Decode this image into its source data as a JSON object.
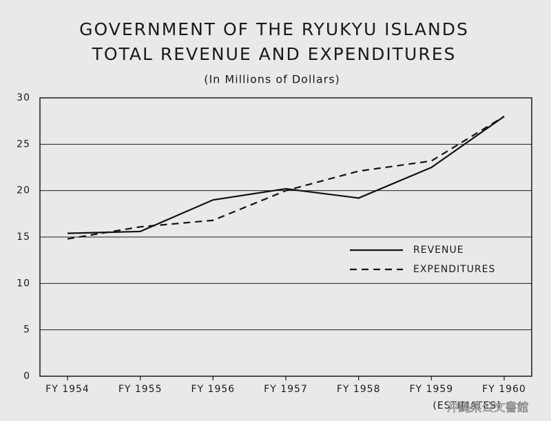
{
  "chart_data": {
    "type": "line",
    "title_lines": [
      "GOVERNMENT OF THE RYUKYU ISLANDS",
      "TOTAL REVENUE AND EXPENDITURES"
    ],
    "subtitle": "(In Millions of Dollars)",
    "categories": [
      "FY 1954",
      "FY 1955",
      "FY 1956",
      "FY 1957",
      "FY 1958",
      "FY 1959",
      "FY 1960"
    ],
    "series": [
      {
        "name": "REVENUE",
        "color": "#111111",
        "line_style": "solid",
        "values": [
          15.4,
          15.6,
          19.0,
          20.2,
          19.2,
          22.5,
          28.0
        ]
      },
      {
        "name": "EXPENDITURES",
        "color": "#111111",
        "line_style": "dashed",
        "values": [
          14.8,
          16.1,
          16.8,
          20.0,
          22.1,
          23.2,
          28.0
        ]
      }
    ],
    "ylim": [
      0,
      30
    ],
    "yticks": [
      0,
      5,
      10,
      15,
      20,
      25,
      30
    ],
    "grid": true,
    "annotation": "(ESTIMATES)",
    "watermark": "沖縄県公文書館"
  }
}
